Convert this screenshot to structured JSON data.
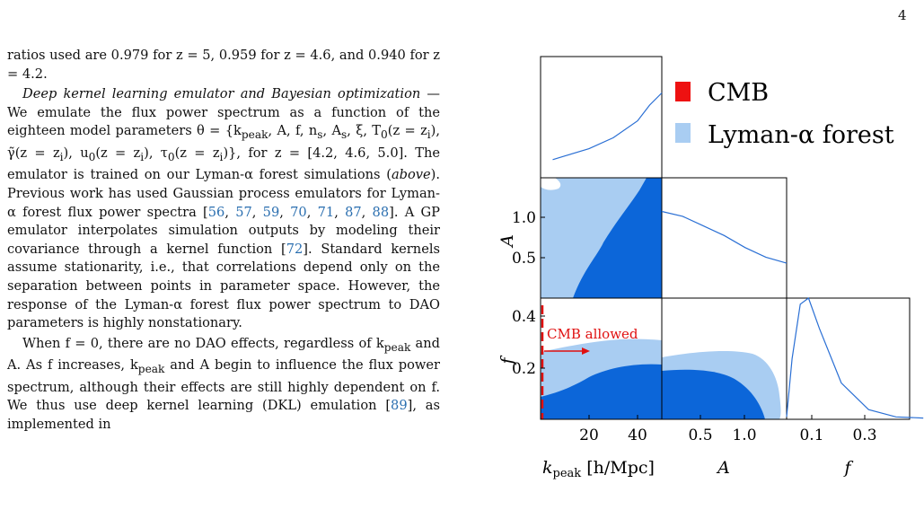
{
  "page_number": "4",
  "text": {
    "p1": "ratios used are 0.979 for z = 5, 0.959 for z = 4.6, and 0.940 for z = 4.2.",
    "p2_heading": "Deep kernel learning emulator and Bayesian optimization",
    "p2_dash": " — ",
    "p2_body_a": "We emulate the flux power spectrum as a function of the eighteen model parameters θ = {k",
    "p2_body_a_sub": "peak",
    "p2_body_b": ", A, f, n",
    "p2_body_b_sub": "s",
    "p2_body_c": ", A",
    "p2_body_c_sub": "s",
    "p2_body_d": ", ξ, T",
    "p2_body_d_sub": "0",
    "p2_body_e": "(z = z",
    "p2_body_e_sub": "i",
    "p2_body_f": "), γ̃(z = z",
    "p2_body_f_sub": "i",
    "p2_body_g": "), u",
    "p2_body_g_sub": "0",
    "p2_body_h": "(z = z",
    "p2_body_h_sub": "i",
    "p2_body_i": "), τ",
    "p2_body_i_sub": "0",
    "p2_body_j": "(z = z",
    "p2_body_j_sub": "i",
    "p2_body_k": ")}, for z = [4.2, 4.6, 5.0]. The emulator is trained on our Lyman-α forest simulations (",
    "p2_above": "above",
    "p2_body_l": "). Previous work has used Gaussian process emulators for Lyman-α forest flux power spectra [",
    "p2_refs1": [
      "56",
      "57",
      "59",
      "70",
      "71",
      "87",
      "88"
    ],
    "p2_body_m": "]. A GP emulator interpolates simulation outputs by modeling their covariance through a kernel function [",
    "p2_ref2": "72",
    "p2_body_n": "]. Standard kernels assume stationarity, i.e., that correlations depend only on the separation between points in parameter space. However, the response of the Lyman-α forest flux power spectrum to DAO parameters is highly nonstationary.",
    "p3_a": "When f = 0, there are no DAO effects, regardless of k",
    "p3_a_sub": "peak",
    "p3_b": " and A. As f increases, k",
    "p3_b_sub": "peak",
    "p3_c": " and A begin to influence the flux power spectrum, although their effects are still highly dependent on f. We thus use deep kernel learning (DKL) emulation [",
    "p3_ref": "89",
    "p3_d": "], as implemented in"
  },
  "figure": {
    "legend": [
      {
        "label": "CMB",
        "color": "#ee1111"
      },
      {
        "label": "Lyman-α forest",
        "color": "#a9cdf2"
      }
    ],
    "annotation": "CMB allowed",
    "colors": {
      "inner": "#0c66d9",
      "outer": "#a9cdf2",
      "line": "#2a6fd4",
      "cmb": "#e01010"
    },
    "axis_labels": {
      "x": [
        "k",
        "peak",
        " [h/Mpc]",
        "A",
        "f"
      ],
      "y": [
        "A",
        "f"
      ]
    },
    "ticks": {
      "kpeak": [
        "20",
        "40"
      ],
      "A_x": [
        "0.5",
        "1.0"
      ],
      "f_x": [
        "0.1",
        "0.3"
      ],
      "A_y": [
        "1.0",
        "0.5"
      ],
      "f_y": [
        "0.4",
        "0.2"
      ]
    }
  },
  "chart_data": {
    "type": "corner",
    "parameters": [
      "k_peak [h/Mpc]",
      "A",
      "f"
    ],
    "series": [
      {
        "name": "CMB"
      },
      {
        "name": "Lyman-α forest"
      }
    ],
    "marginals": {
      "kpeak": {
        "x": [
          5,
          10,
          20,
          30,
          40,
          45,
          50
        ],
        "density": [
          0.15,
          0.18,
          0.24,
          0.33,
          0.47,
          0.6,
          0.7
        ]
      },
      "A": {
        "x": [
          0.0,
          0.25,
          0.5,
          0.75,
          1.0,
          1.25,
          1.5
        ],
        "density": [
          0.72,
          0.68,
          0.6,
          0.52,
          0.42,
          0.34,
          0.29
        ]
      },
      "f": {
        "x": [
          0.0,
          0.02,
          0.05,
          0.08,
          0.12,
          0.2,
          0.3,
          0.4,
          0.5
        ],
        "density": [
          0.02,
          0.5,
          0.95,
          1.0,
          0.75,
          0.3,
          0.08,
          0.02,
          0.01
        ]
      }
    },
    "cmb_limit": {
      "parameter": "kpeak",
      "value": 1
    },
    "ranges": {
      "kpeak": [
        0,
        50
      ],
      "A": [
        0,
        1.5
      ],
      "f": [
        0,
        0.45
      ]
    }
  }
}
